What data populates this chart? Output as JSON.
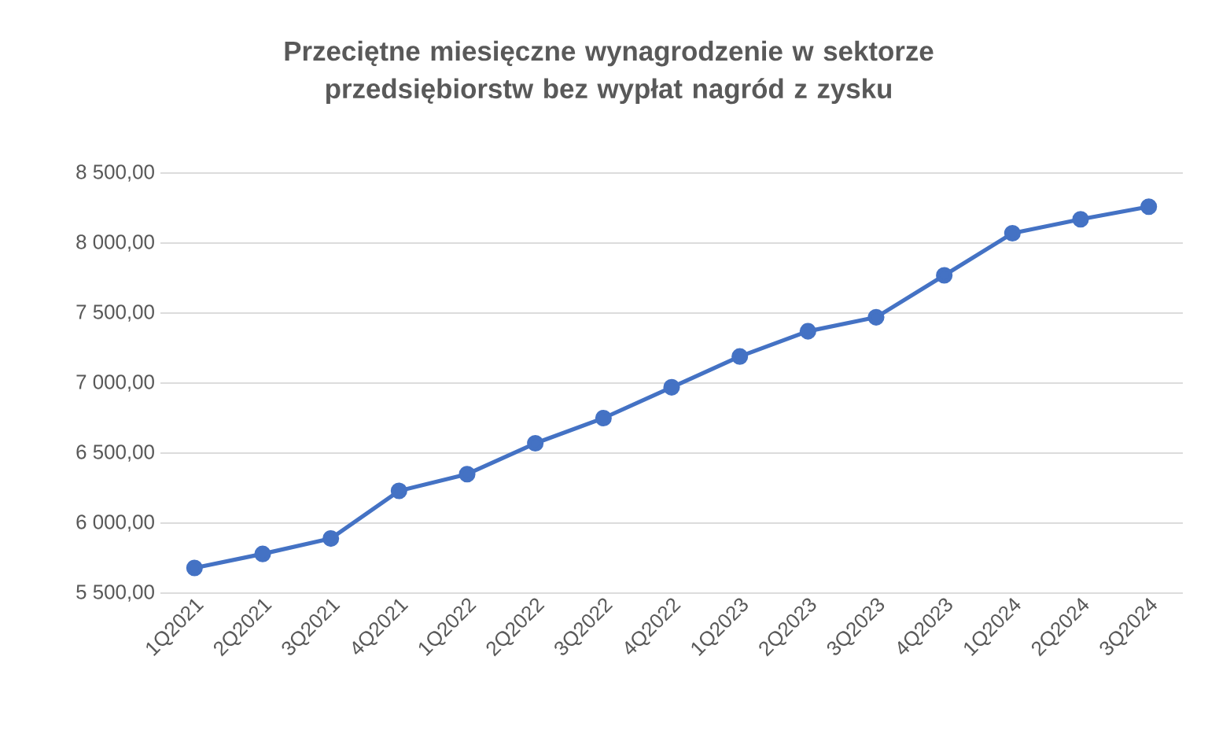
{
  "chart_data": {
    "type": "line",
    "title": "Przeciętne miesięczne wynagrodzenie w sektorze przedsiębiorstw bez wypłat nagród z zysku",
    "categories": [
      "1Q2021",
      "2Q2021",
      "3Q2021",
      "4Q2021",
      "1Q2022",
      "2Q2022",
      "3Q2022",
      "4Q2022",
      "1Q2023",
      "2Q2023",
      "3Q2023",
      "4Q2023",
      "1Q2024",
      "2Q2024",
      "3Q2024"
    ],
    "series": [
      {
        "color": "#4472c4",
        "values": [
          5680,
          5780,
          5890,
          6230,
          6350,
          6570,
          6750,
          6970,
          7190,
          7370,
          7470,
          7770,
          8070,
          8170,
          8260
        ]
      }
    ],
    "ylim": [
      5500,
      8500
    ],
    "yticks": [
      {
        "value": 5500,
        "label": "5 500,00"
      },
      {
        "value": 6000,
        "label": "6 000,00"
      },
      {
        "value": 6500,
        "label": "6 500,00"
      },
      {
        "value": 7000,
        "label": "7 000,00"
      },
      {
        "value": 7500,
        "label": "7 500,00"
      },
      {
        "value": 8000,
        "label": "8 000,00"
      },
      {
        "value": 8500,
        "label": "8 500,00"
      }
    ],
    "grid": "y",
    "marker": "circle",
    "line_style": "solid"
  }
}
